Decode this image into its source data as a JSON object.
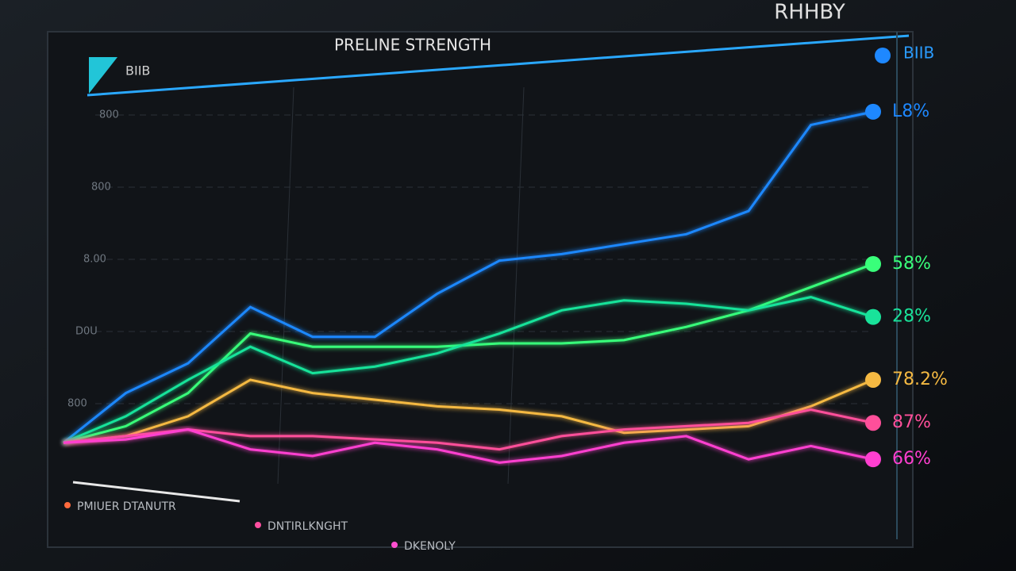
{
  "chart_data": {
    "type": "line",
    "title": "PRELINE STRENGTH",
    "corner_title": "RHHBY",
    "panel_label": "BIIB",
    "top_legend_label": "BIIB",
    "y_axis_texts": [
      "800",
      "800",
      "8.00",
      "D0U",
      "800"
    ],
    "x": [
      0,
      1,
      2,
      3,
      4,
      5,
      6,
      7,
      8,
      9,
      10,
      11,
      12,
      13
    ],
    "xlim": [
      0,
      13
    ],
    "ylim": [
      -10,
      105
    ],
    "series": [
      {
        "label": "L8%",
        "color": "#1e88ff",
        "values": [
          0,
          15,
          24,
          41,
          32,
          32,
          45,
          55,
          57,
          60,
          63,
          70,
          96,
          100
        ]
      },
      {
        "label": "58%",
        "color": "#39ff7a",
        "values": [
          0,
          5,
          15,
          33,
          29,
          29,
          29,
          30,
          30,
          31,
          35,
          40,
          47,
          54
        ]
      },
      {
        "label": "28%",
        "color": "#19e39a",
        "values": [
          0,
          8,
          19,
          29,
          21,
          23,
          27,
          33,
          40,
          43,
          42,
          40,
          44,
          38
        ]
      },
      {
        "label": "78.2%",
        "color": "#f5b942",
        "values": [
          0,
          2,
          8,
          19,
          15,
          13,
          11,
          10,
          8,
          3,
          4,
          5,
          11,
          19
        ]
      },
      {
        "label": "87%",
        "color": "#ff4f9a",
        "values": [
          0,
          2,
          4,
          2,
          2,
          1,
          0,
          -2,
          2,
          4,
          5,
          6,
          10,
          6
        ]
      },
      {
        "label": "66%",
        "color": "#ff3fd0",
        "values": [
          0,
          1,
          4,
          -2,
          -4,
          0,
          -2,
          -6,
          -4,
          0,
          2,
          -5,
          -1,
          -5
        ]
      }
    ],
    "legend": [
      {
        "label": "PMIUER DTANUTR",
        "color": "#ff6a3d"
      },
      {
        "label": "DNTIRLKNGHT",
        "color": "#ff4fa0"
      },
      {
        "label": "DKENOLY",
        "color": "#ff4fd0"
      }
    ]
  }
}
